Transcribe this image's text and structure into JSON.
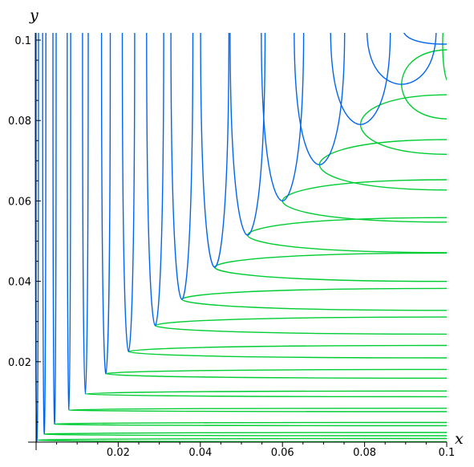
{
  "chart_data": {
    "type": "line",
    "title": "",
    "xlabel": "x",
    "ylabel": "y",
    "xlim": [
      0,
      0.1
    ],
    "ylim": [
      0,
      0.1
    ],
    "x_ticks": [
      0.02,
      0.04,
      0.06,
      0.08,
      0.1
    ],
    "y_ticks": [
      0.02,
      0.04,
      0.06,
      0.08,
      0.1
    ],
    "x_tick_labels": [
      "0.02",
      "0.04",
      "0.06",
      "0.08",
      "0.1"
    ],
    "y_tick_labels": [
      "0.02",
      "0.04",
      "0.06",
      "0.08",
      "0.1"
    ],
    "grid": false,
    "legend": false,
    "series": [
      {
        "color": "#0066ee",
        "description": "vertical-branch trajectories; each vertex is where the curve turns",
        "vertices": [
          [
            0.0002,
            0.0002
          ],
          [
            0.002,
            0.002
          ],
          [
            0.0045,
            0.0045
          ],
          [
            0.008,
            0.008
          ],
          [
            0.012,
            0.012
          ],
          [
            0.017,
            0.017
          ],
          [
            0.0225,
            0.0225
          ],
          [
            0.029,
            0.029
          ],
          [
            0.0355,
            0.0355
          ],
          [
            0.0435,
            0.0435
          ],
          [
            0.0515,
            0.0515
          ],
          [
            0.06,
            0.06
          ],
          [
            0.069,
            0.069
          ],
          [
            0.079,
            0.079
          ],
          [
            0.089,
            0.089
          ],
          [
            0.099,
            0.099
          ]
        ]
      },
      {
        "color": "#00cc33",
        "description": "horizontal-branch trajectories; each vertex is where the curve turns",
        "vertices": [
          [
            0.0005,
            0.0005
          ],
          [
            0.002,
            0.002
          ],
          [
            0.0045,
            0.0045
          ],
          [
            0.008,
            0.008
          ],
          [
            0.012,
            0.012
          ],
          [
            0.017,
            0.017
          ],
          [
            0.0225,
            0.0225
          ],
          [
            0.029,
            0.029
          ],
          [
            0.0355,
            0.0355
          ],
          [
            0.0435,
            0.0435
          ],
          [
            0.0515,
            0.0515
          ],
          [
            0.06,
            0.06
          ],
          [
            0.069,
            0.069
          ],
          [
            0.079,
            0.079
          ],
          [
            0.089,
            0.089
          ],
          [
            0.099,
            0.099
          ]
        ]
      }
    ]
  }
}
